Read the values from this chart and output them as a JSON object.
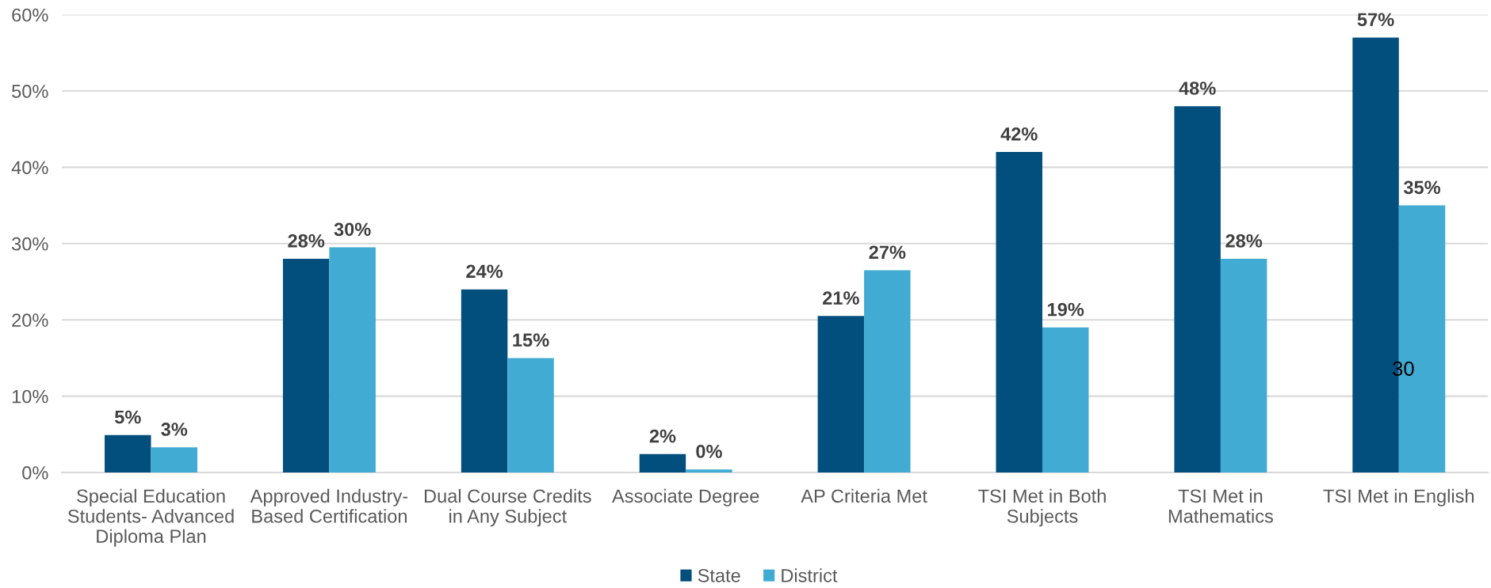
{
  "chart_data": {
    "type": "bar",
    "categories": [
      "Special Education Students- Advanced Diploma Plan",
      "Approved Industry-Based Certification",
      "Dual Course Credits in Any Subject",
      "Associate Degree",
      "AP Criteria Met",
      "TSI Met in Both Subjects",
      "TSI Met in Mathematics",
      "TSI Met in English"
    ],
    "series": [
      {
        "name": "State",
        "color": "#024e7c",
        "values": [
          4.9,
          28,
          24,
          2.4,
          20.5,
          42,
          48,
          57
        ],
        "value_labels": [
          "5%",
          "28%",
          "24%",
          "2%",
          "21%",
          "42%",
          "48%",
          "57%"
        ]
      },
      {
        "name": "District",
        "color": "#41abd3",
        "values": [
          3.3,
          29.5,
          15,
          0.4,
          26.5,
          19,
          28,
          35
        ],
        "value_labels": [
          "3%",
          "30%",
          "15%",
          "0%",
          "27%",
          "19%",
          "28%",
          "35%"
        ]
      }
    ],
    "ylim": [
      0,
      60
    ],
    "yticks": [
      {
        "value": 0,
        "label": "0%"
      },
      {
        "value": 10,
        "label": "10%"
      },
      {
        "value": 20,
        "label": "20%"
      },
      {
        "value": 30,
        "label": "30%"
      },
      {
        "value": 40,
        "label": "40%"
      },
      {
        "value": 50,
        "label": "50%"
      },
      {
        "value": 60,
        "label": "60%"
      }
    ],
    "grid": "y",
    "legend": "bottom",
    "annotations": [
      "30"
    ]
  }
}
